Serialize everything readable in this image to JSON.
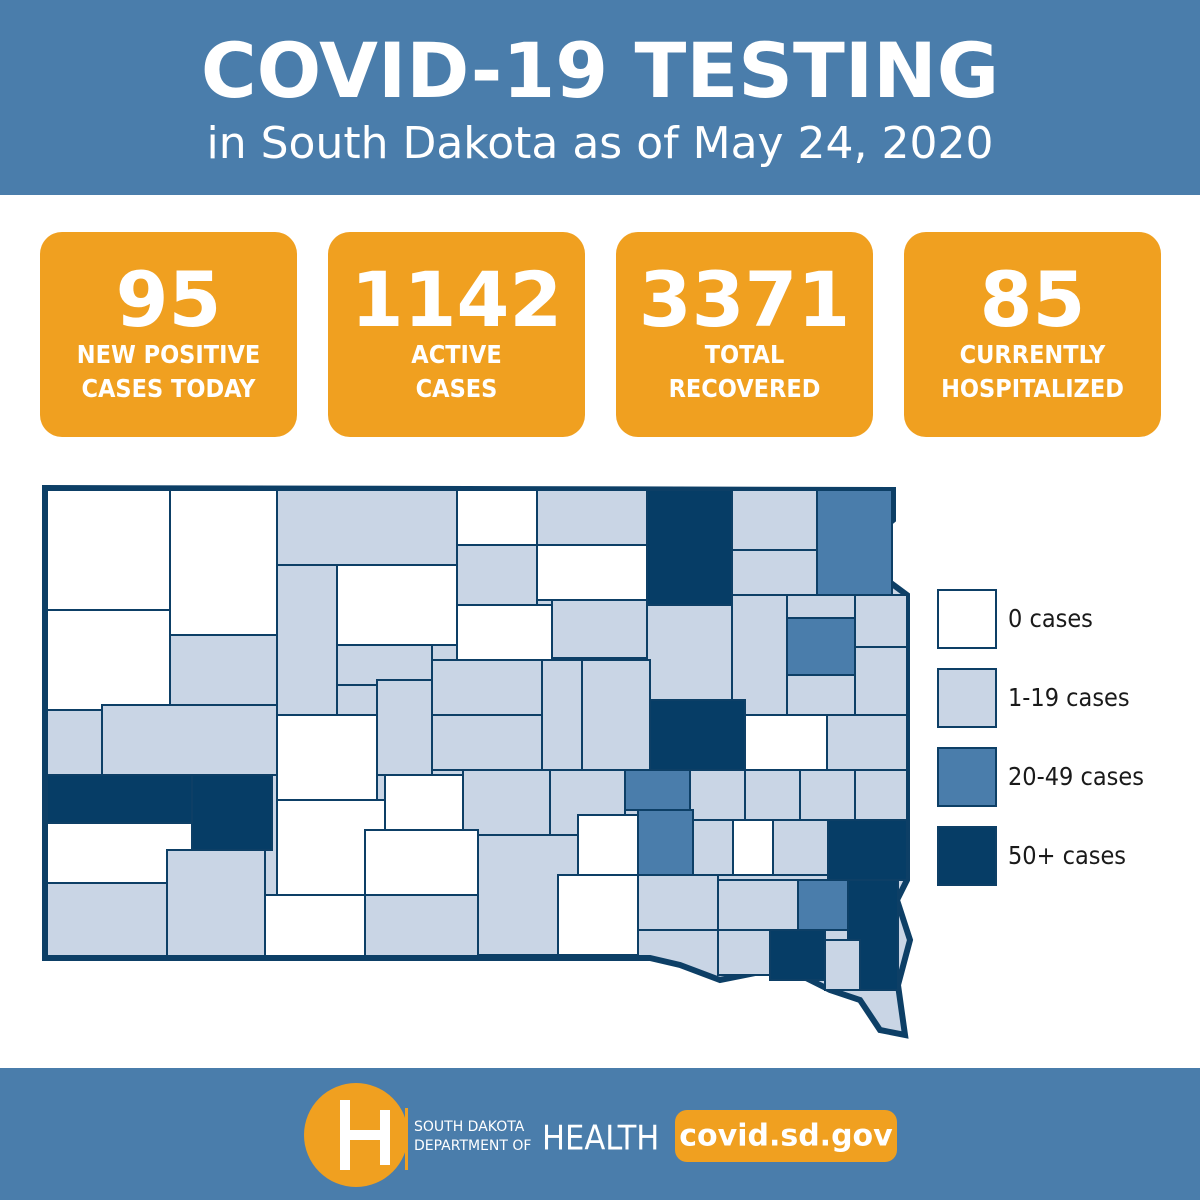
{
  "header": {
    "title": "COVID-19 TESTING",
    "subtitle": "in South Dakota as of May 24, 2020"
  },
  "stats": [
    {
      "value": 95,
      "label": [
        "NEW POSITIVE",
        "CASES TODAY"
      ]
    },
    {
      "value": 1142,
      "label": [
        "ACTIVE",
        "CASES"
      ]
    },
    {
      "value": 3371,
      "label": [
        "TOTAL",
        "RECOVERED"
      ]
    },
    {
      "value": 85,
      "label": [
        "CURRENTLY",
        "HOSPITALIZED"
      ]
    }
  ],
  "legend": [
    {
      "label": "0 cases",
      "color": "#ffffff"
    },
    {
      "label": "1-19 cases",
      "color": "#c9d5e5"
    },
    {
      "label": "20-49 cases",
      "color": "#4a7dab"
    },
    {
      "label": "50+ cases",
      "color": "#063d66"
    }
  ],
  "footer": {
    "org_line1": "SOUTH DAKOTA",
    "org_line2": "DEPARTMENT OF",
    "org_name": "HEALTH",
    "url": "covid.sd.gov"
  }
}
